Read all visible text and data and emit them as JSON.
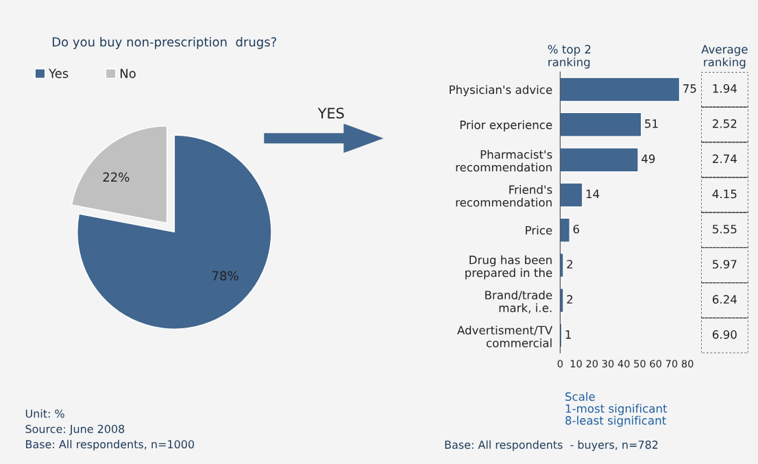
{
  "chart_data": [
    {
      "type": "pie",
      "title": "Do you buy non-prescription  drugs?",
      "categories": [
        "Yes",
        "No"
      ],
      "values": [
        78,
        22
      ],
      "colors": [
        "#41668f",
        "#c0c0c0"
      ],
      "value_labels": [
        "78%",
        "22%"
      ],
      "legend": "top left",
      "annotations": [
        "YES",
        "Unit: %",
        "Source: June 2008",
        "Base: All respondents, n=1000"
      ]
    },
    {
      "type": "bar",
      "orientation": "horizontal",
      "title": "% top 2\nranking",
      "categories": [
        "Physician's advice",
        "Prior experience",
        "Pharmacist's\nrecommendation",
        "Friend's\nrecommendation",
        "Price",
        "Drug has been\nprepared in the",
        "Brand/trade\nmark, i.e.",
        "Advertisment/TV\ncommercial"
      ],
      "values": [
        75,
        51,
        49,
        14,
        6,
        2,
        2,
        1
      ],
      "color": "#41668f",
      "xlim": [
        0,
        80
      ],
      "xticks": [
        0,
        10,
        20,
        30,
        40,
        50,
        60,
        70,
        80
      ],
      "data_labels": true,
      "annotations": [
        "Scale\n1-most significant\n8-least significant",
        "Base: All respondents  - buyers, n=782"
      ]
    },
    {
      "type": "other",
      "title": "Average\nranking",
      "annotations": [
        "1.94",
        "2.52",
        "2.74",
        "4.15",
        "5.55",
        "5.97",
        "6.24",
        "6.90"
      ]
    }
  ]
}
